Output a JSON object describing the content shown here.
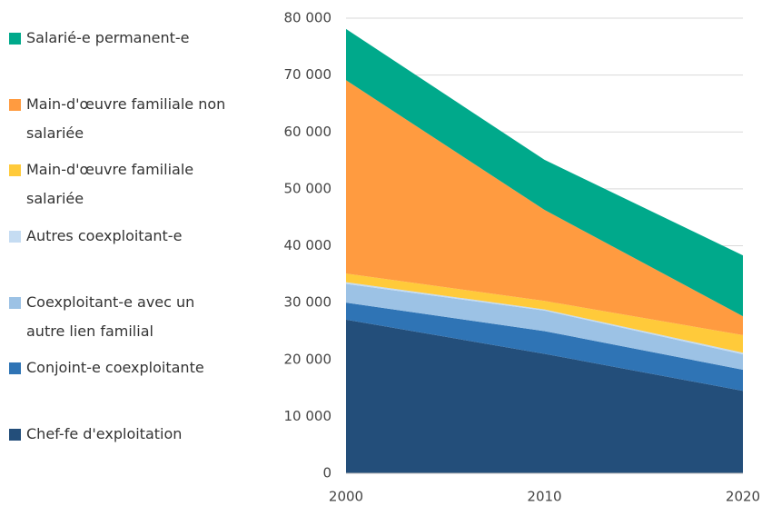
{
  "chart_data": {
    "type": "stacked_area",
    "x": [
      2000,
      2010,
      2020
    ],
    "xlim": [
      2000,
      2020
    ],
    "ylim": [
      0,
      80000
    ],
    "yticks": [
      {
        "value": 0,
        "label": "0"
      },
      {
        "value": 10000,
        "label": "10 000"
      },
      {
        "value": 20000,
        "label": "20 000"
      },
      {
        "value": 30000,
        "label": "30 000"
      },
      {
        "value": 40000,
        "label": "40 000"
      },
      {
        "value": 50000,
        "label": "50 000"
      },
      {
        "value": 60000,
        "label": "60 000"
      },
      {
        "value": 70000,
        "label": "70 000"
      },
      {
        "value": 80000,
        "label": "80 000"
      }
    ],
    "grid": true,
    "legend": "left",
    "series": [
      {
        "name": "Chef-fe d'exploitation",
        "color": "#234e7a",
        "values": [
          27000,
          21000,
          14500
        ]
      },
      {
        "name": "Conjoint-e coexploitante",
        "color": "#2f74b5",
        "values": [
          3000,
          4000,
          3700
        ]
      },
      {
        "name": "Coexploitant-e avec un autre lien familial",
        "color": "#9cc2e5",
        "values": [
          3300,
          3600,
          2700
        ]
      },
      {
        "name": "Autres coexploitant-e",
        "color": "#c5dcf2",
        "values": [
          300,
          200,
          300
        ]
      },
      {
        "name": "Main-d'œuvre familiale salariée",
        "color": "#ffca3a",
        "values": [
          1500,
          1500,
          3100
        ]
      },
      {
        "name": "Main-d'œuvre familiale non salariée",
        "color": "#ff9b40",
        "values": [
          34000,
          16000,
          3300
        ]
      },
      {
        "name": "Salarié-e permanent-e",
        "color": "#00a98b",
        "values": [
          9000,
          8800,
          10700
        ]
      }
    ]
  }
}
